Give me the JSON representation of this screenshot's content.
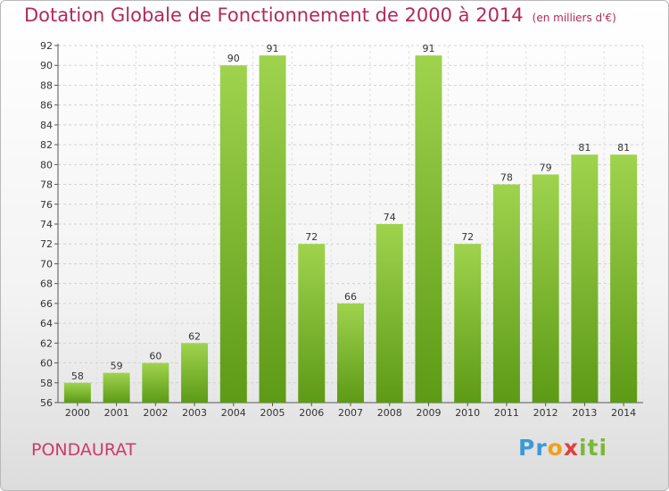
{
  "title": "Dotation Globale de Fonctionnement de 2000 à 2014",
  "unit": "(en milliers d'€)",
  "commune": "PONDAURAT",
  "logo": {
    "p1": "Pr",
    "p2": "o",
    "p3": "x",
    "p4": "iti"
  },
  "colors": {
    "bar_top": "#9fd34e",
    "bar_bottom": "#5d9a16",
    "title": "#b02a5c",
    "commune": "#cc3a6b"
  },
  "chart_data": {
    "type": "bar",
    "categories": [
      "2000",
      "2001",
      "2002",
      "2003",
      "2004",
      "2005",
      "2006",
      "2007",
      "2008",
      "2009",
      "2010",
      "2011",
      "2012",
      "2013",
      "2014"
    ],
    "values": [
      58,
      59,
      60,
      62,
      90,
      91,
      72,
      66,
      74,
      91,
      72,
      78,
      79,
      81,
      81
    ],
    "ylim": [
      56,
      92
    ],
    "yticks": [
      56,
      58,
      60,
      62,
      64,
      66,
      68,
      70,
      72,
      74,
      76,
      78,
      80,
      82,
      84,
      86,
      88,
      90,
      92
    ],
    "grid": true,
    "legend": "none"
  }
}
